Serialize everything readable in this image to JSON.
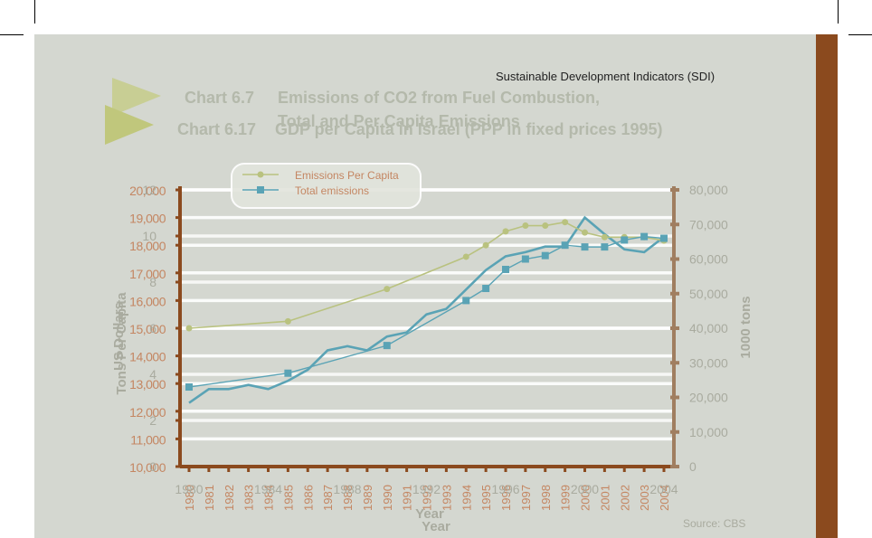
{
  "header": {
    "label": "Sustainable Development Indicators (SDI)"
  },
  "titles": {
    "back_number": "Chart 6.7",
    "back_text_line1": "Emissions of CO2 from Fuel Combustion,",
    "back_text_line2": "Total and Per Capita Emissions",
    "front_number": "Chart 6.17",
    "front_text": "GDP per Capita in Israel (PPP in fixed prices 1995)"
  },
  "source": "Source: CBS",
  "colors": {
    "panel": "#d4d7d0",
    "sidebar": "#8b4a1e",
    "axis_brown": "#8b4a1e",
    "axis_tan": "#a07e60",
    "tick_text": "#c48662",
    "label_grey": "#a9ab9f",
    "gdp_line": "#5aa3b5",
    "emissions_per_capita": "#b9c27f",
    "total_emissions": "#5aa3b5"
  },
  "chart_data": [
    {
      "type": "line",
      "title": "GDP per Capita in Israel (PPP in fixed prices 1995)",
      "xlabel": "Year",
      "ylabel": "US Dollars",
      "ylim": [
        10000,
        20000
      ],
      "y_ticks": [
        "10,000",
        "11,000",
        "12,000",
        "13,000",
        "14,000",
        "15,000",
        "16,000",
        "17,000",
        "18,000",
        "19,000",
        "20,000"
      ],
      "x": [
        1980,
        1981,
        1982,
        1983,
        1984,
        1985,
        1986,
        1987,
        1988,
        1989,
        1990,
        1991,
        1992,
        1993,
        1994,
        1995,
        1996,
        1997,
        1998,
        1999,
        2000,
        2001,
        2002,
        2003,
        2004
      ],
      "x_tick_labels": [
        "1980",
        "1981",
        "1982",
        "1983",
        "1984",
        "1985",
        "1986",
        "1987",
        "1988",
        "1989",
        "1990",
        "1991",
        "1992",
        "1993",
        "1994",
        "1995",
        "1996",
        "1997",
        "1998",
        "1999",
        "2000",
        "2001",
        "2002",
        "2003",
        "2004"
      ],
      "series": [
        {
          "values": [
            12300,
            12800,
            12800,
            12950,
            12800,
            13100,
            13500,
            14200,
            14350,
            14200,
            14700,
            14850,
            15500,
            15700,
            16400,
            17100,
            17600,
            17750,
            17950,
            17950,
            19000,
            18400,
            17850,
            17750,
            18300
          ]
        }
      ],
      "grid": true
    },
    {
      "type": "line",
      "title": "Emissions of CO2 from Fuel Combustion, Total and Per Capita Emissions",
      "xlabel": "Year",
      "ylabel_left": "Tons Per Capita",
      "ylabel_right": "1000 tons",
      "ylim_left": [
        0,
        12
      ],
      "ylim_right": [
        0,
        80000
      ],
      "y_ticks_left": [
        "0",
        "2",
        "4",
        "6",
        "8",
        "10",
        "12"
      ],
      "y_ticks_right": [
        "0",
        "10,000",
        "20,000",
        "30,000",
        "40,000",
        "50,000",
        "60,000",
        "70,000",
        "80,000"
      ],
      "x_tick_labels": [
        "1980",
        "1984",
        "1988",
        "1992",
        "1996",
        "2000",
        "2004"
      ],
      "legend": "top-left",
      "series": [
        {
          "name": "Emissions Per Capita",
          "x": [
            1980,
            1985,
            1990,
            1994,
            1995,
            1996,
            1997,
            1998,
            1999,
            2000,
            2001,
            2002,
            2003,
            2004
          ],
          "values": [
            6.0,
            6.3,
            7.7,
            9.1,
            9.6,
            10.2,
            10.45,
            10.45,
            10.6,
            10.15,
            9.95,
            9.95,
            9.95,
            9.8
          ],
          "axis": "left"
        },
        {
          "name": "Total emissions",
          "x": [
            1980,
            1985,
            1990,
            1994,
            1995,
            1996,
            1997,
            1998,
            1999,
            2000,
            2001,
            2002,
            2003,
            2004
          ],
          "values": [
            23000,
            27000,
            35000,
            48000,
            51500,
            57000,
            60000,
            61000,
            64000,
            63500,
            63500,
            65500,
            66500,
            66000
          ],
          "axis": "right"
        }
      ]
    }
  ]
}
